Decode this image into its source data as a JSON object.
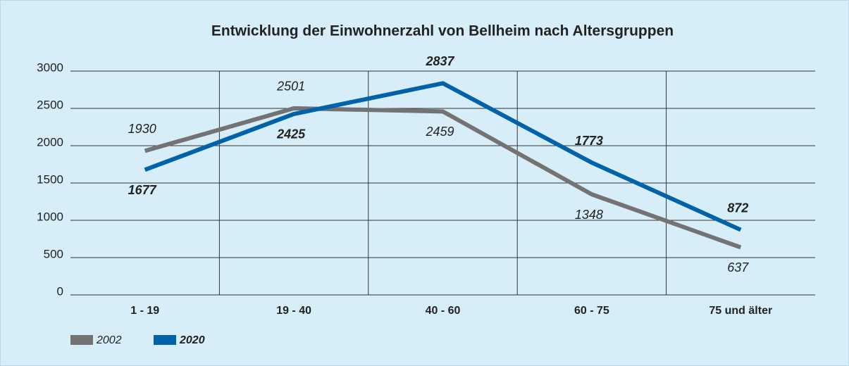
{
  "chart_data": {
    "type": "line",
    "title": "Entwicklung  der Einwohnerzahl von Bellheim nach Altersgruppen",
    "categories": [
      "1 - 19",
      "19 - 40",
      "40 - 60",
      "60 - 75",
      "75 und älter"
    ],
    "series": [
      {
        "name": "2002",
        "color": "#737373",
        "values": [
          1930,
          2501,
          2459,
          1348,
          637
        ]
      },
      {
        "name": "2020",
        "color": "#0062a9",
        "values": [
          1677,
          2425,
          2837,
          1773,
          872
        ]
      }
    ],
    "ylim": [
      0,
      3000
    ],
    "yticks": [
      0,
      500,
      1000,
      1500,
      2000,
      2500,
      3000
    ],
    "grid": true,
    "legend": "bottom-left"
  }
}
